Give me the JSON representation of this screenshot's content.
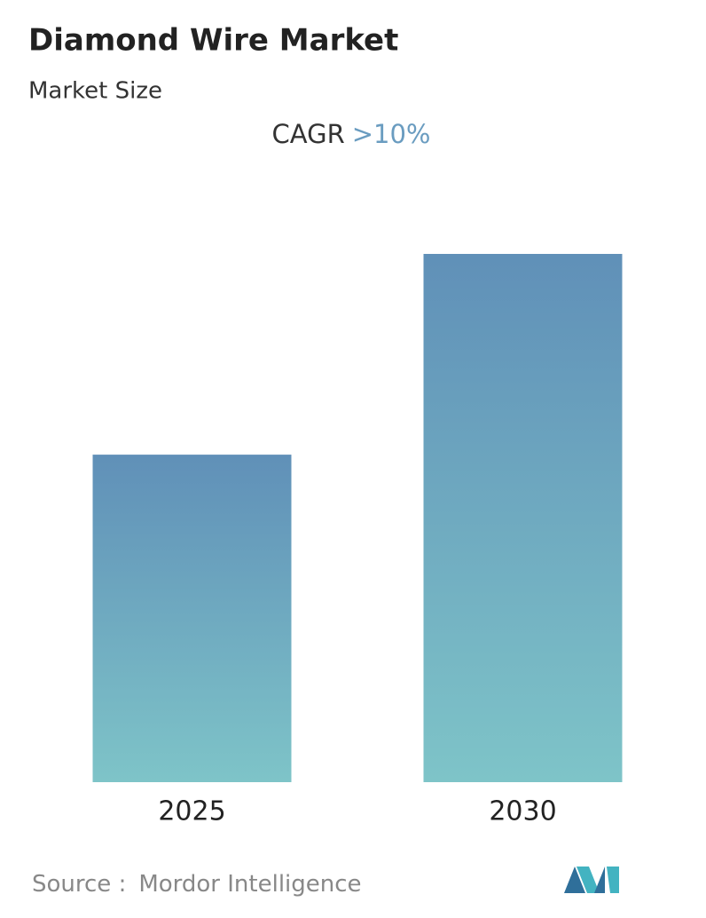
{
  "chart_data": {
    "type": "bar",
    "title": "Diamond Wire Market",
    "subtitle": "Market Size",
    "cagr_label": "CAGR",
    "cagr_value": ">10%",
    "categories": [
      "2025",
      "2030"
    ],
    "values": [
      62,
      100
    ],
    "color_top": "#6090b8",
    "color_bottom": "#7ec4c8",
    "source_label": "Source :",
    "source": "Mordor Intelligence"
  }
}
